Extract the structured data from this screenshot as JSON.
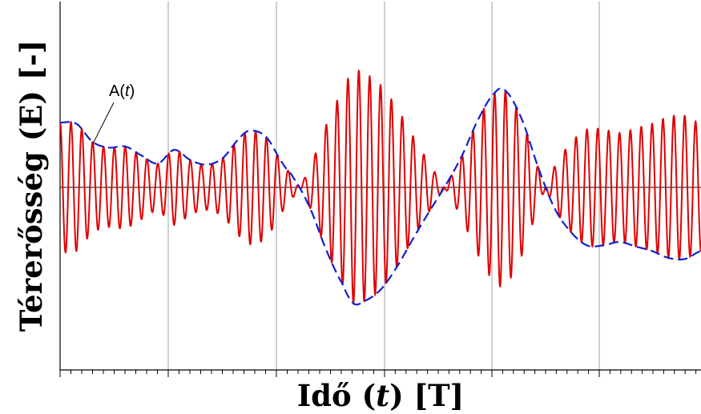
{
  "chart_data": {
    "type": "line",
    "xlabel": {
      "text": "Idő",
      "var": "t",
      "unit": "[T]"
    },
    "ylabel": {
      "text": "Térerősség (E) [-]"
    },
    "grid": {
      "vertical": true,
      "horizontal": false
    },
    "ylim": [
      -1.6,
      1.6
    ],
    "xlim": [
      0,
      59
    ],
    "series": [
      {
        "style": "solid",
        "color": "#e00000",
        "role": "carrier",
        "cycles": 59,
        "x": [
          0,
          1.5,
          3,
          4.5,
          6,
          7.5,
          9,
          10.5,
          12,
          13.5,
          15,
          16.5,
          17.5,
          19,
          20.5,
          21.5,
          23,
          24.5,
          26,
          27,
          28,
          29.5,
          31,
          32.5,
          34,
          35.5,
          37,
          38.5,
          40,
          41,
          42.5,
          44,
          45.5,
          47,
          48.5,
          50,
          51.5,
          53,
          54.5,
          56,
          57.5,
          59
        ],
        "y": [
          0.57,
          0.56,
          0.4,
          0.35,
          0.36,
          0.28,
          0.21,
          0.33,
          0.24,
          0.2,
          0.26,
          0.43,
          0.5,
          0.44,
          0.21,
          0.08,
          -0.18,
          -0.55,
          -0.85,
          -1.02,
          -1.0,
          -0.9,
          -0.7,
          -0.45,
          -0.21,
          0.02,
          0.28,
          0.6,
          0.83,
          0.85,
          0.6,
          0.18,
          -0.18,
          -0.39,
          -0.51,
          -0.51,
          -0.48,
          -0.52,
          -0.56,
          -0.62,
          -0.63,
          -0.56
        ]
      },
      {
        "style": "dashed",
        "color": "#1020d0",
        "role": "envelope",
        "x": [
          0,
          1.5,
          3,
          4.5,
          6,
          7.5,
          9,
          10.5,
          12,
          13.5,
          15,
          16.5,
          17.5,
          19,
          20.5,
          21.5,
          23,
          24.5,
          26,
          27,
          28,
          29.5,
          31,
          32.5,
          34,
          35.5,
          37,
          38.5,
          40,
          41,
          42.5,
          44,
          45.5,
          47,
          48.5,
          50,
          51.5,
          53,
          54.5,
          56,
          57.5,
          59
        ],
        "y": [
          0.57,
          0.56,
          0.4,
          0.35,
          0.36,
          0.28,
          0.21,
          0.33,
          0.24,
          0.2,
          0.26,
          0.43,
          0.5,
          0.44,
          0.21,
          0.08,
          -0.18,
          -0.55,
          -0.85,
          -1.02,
          -1.0,
          -0.9,
          -0.7,
          -0.45,
          -0.21,
          0.02,
          0.28,
          0.6,
          0.83,
          0.85,
          0.6,
          0.18,
          -0.18,
          -0.39,
          -0.51,
          -0.51,
          -0.48,
          -0.52,
          -0.56,
          -0.62,
          -0.63,
          -0.56
        ]
      }
    ],
    "annotations": [
      {
        "text": "A(",
        "var": "t",
        "close": ")",
        "target_x": 3,
        "target_y": 0.38
      }
    ]
  }
}
